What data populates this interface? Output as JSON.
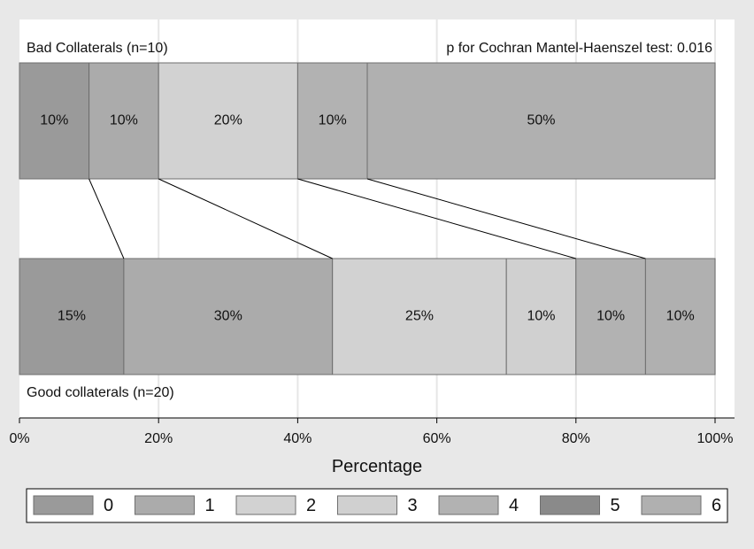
{
  "chart_data": {
    "type": "bar",
    "orientation": "horizontal",
    "stacked": true,
    "xlabel": "Percentage",
    "xlim": [
      0,
      100
    ],
    "xticks": [
      0,
      20,
      40,
      60,
      80,
      100
    ],
    "xtick_labels": [
      "0%",
      "20%",
      "40%",
      "60%",
      "80%",
      "100%"
    ],
    "grid": true,
    "legend_position": "bottom",
    "annotation": "p for Cochran Mantel-Haenszel test: 0.016",
    "categories": [
      "0",
      "1",
      "2",
      "3",
      "4",
      "5",
      "6"
    ],
    "colors": [
      "#9a9a9a",
      "#ababab",
      "#d2d2d2",
      "#d0d0d0",
      "#b2b2b2",
      "#8a8a8a",
      "#b0b0b0"
    ],
    "groups": [
      {
        "name": "Bad Collaterals (n=10)",
        "segments": [
          {
            "category": "0",
            "value": 10,
            "label": "10%"
          },
          {
            "category": "1",
            "value": 10,
            "label": "10%"
          },
          {
            "category": "2",
            "value": 20,
            "label": "20%"
          },
          {
            "category": "3",
            "value": 0,
            "label": ""
          },
          {
            "category": "4",
            "value": 10,
            "label": "10%"
          },
          {
            "category": "5",
            "value": 0,
            "label": ""
          },
          {
            "category": "6",
            "value": 50,
            "label": "50%"
          }
        ]
      },
      {
        "name": "Good collaterals (n=20)",
        "segments": [
          {
            "category": "0",
            "value": 15,
            "label": "15%"
          },
          {
            "category": "1",
            "value": 30,
            "label": "30%"
          },
          {
            "category": "2",
            "value": 25,
            "label": "25%"
          },
          {
            "category": "3",
            "value": 10,
            "label": "10%"
          },
          {
            "category": "4",
            "value": 10,
            "label": "10%"
          },
          {
            "category": "5",
            "value": 0,
            "label": ""
          },
          {
            "category": "6",
            "value": 10,
            "label": "10%"
          }
        ]
      }
    ],
    "connectors": [
      {
        "top": 10,
        "bottom": 15
      },
      {
        "top": 20,
        "bottom": 45
      },
      {
        "top": 40,
        "bottom": 80
      },
      {
        "top": 50,
        "bottom": 90
      }
    ]
  }
}
